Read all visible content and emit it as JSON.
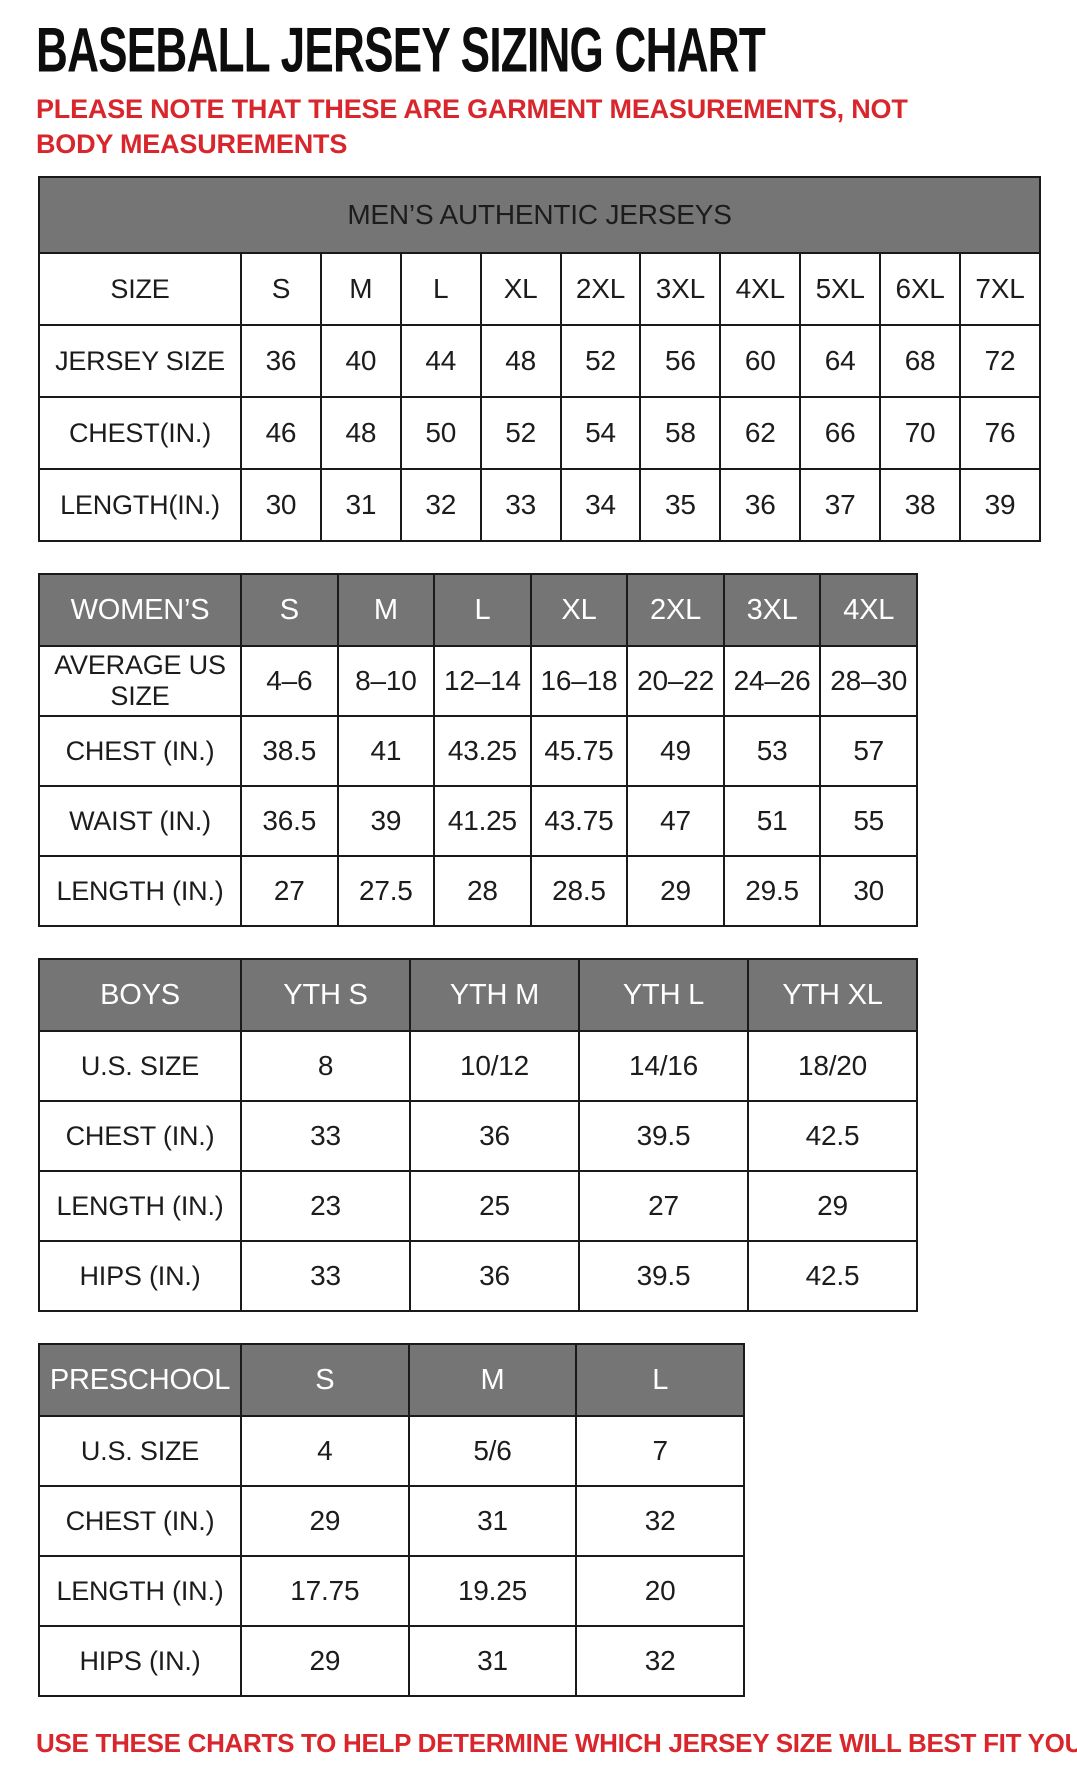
{
  "page": {
    "title": "BASEBALL JERSEY SIZING CHART",
    "note": "PLEASE NOTE THAT THESE ARE GARMENT MEASUREMENTS, NOT BODY MEASUREMENTS",
    "footer": "USE THESE CHARTS TO HELP DETERMINE WHICH JERSEY SIZE WILL BEST FIT YOU."
  },
  "colors": {
    "header_gray": "#757575",
    "accent_red": "#d8262c",
    "text_black": "#1c1c1c",
    "border_color": "#1a1a1a"
  },
  "tables": {
    "mens": {
      "title": "MEN’S AUTHENTIC JERSEYS",
      "rows": [
        {
          "label": "SIZE",
          "values": [
            "S",
            "M",
            "L",
            "XL",
            "2XL",
            "3XL",
            "4XL",
            "5XL",
            "6XL",
            "7XL"
          ]
        },
        {
          "label": "JERSEY SIZE",
          "values": [
            "36",
            "40",
            "44",
            "48",
            "52",
            "56",
            "60",
            "64",
            "68",
            "72"
          ]
        },
        {
          "label": "CHEST(IN.)",
          "values": [
            "46",
            "48",
            "50",
            "52",
            "54",
            "58",
            "62",
            "66",
            "70",
            "76"
          ]
        },
        {
          "label": "LENGTH(IN.)",
          "values": [
            "30",
            "31",
            "32",
            "33",
            "34",
            "35",
            "36",
            "37",
            "38",
            "39"
          ]
        }
      ]
    },
    "womens": {
      "header": {
        "label": "WOMEN’S",
        "sizes": [
          "S",
          "M",
          "L",
          "XL",
          "2XL",
          "3XL",
          "4XL"
        ]
      },
      "rows": [
        {
          "label": "AVERAGE US SIZE",
          "values": [
            "4–6",
            "8–10",
            "12–14",
            "16–18",
            "20–22",
            "24–26",
            "28–30"
          ]
        },
        {
          "label": "CHEST (IN.)",
          "values": [
            "38.5",
            "41",
            "43.25",
            "45.75",
            "49",
            "53",
            "57"
          ]
        },
        {
          "label": "WAIST (IN.)",
          "values": [
            "36.5",
            "39",
            "41.25",
            "43.75",
            "47",
            "51",
            "55"
          ]
        },
        {
          "label": "LENGTH (IN.)",
          "values": [
            "27",
            "27.5",
            "28",
            "28.5",
            "29",
            "29.5",
            "30"
          ]
        }
      ]
    },
    "boys": {
      "header": {
        "label": "BOYS",
        "sizes": [
          "YTH S",
          "YTH M",
          "YTH L",
          "YTH XL"
        ]
      },
      "rows": [
        {
          "label": "U.S. SIZE",
          "values": [
            "8",
            "10/12",
            "14/16",
            "18/20"
          ]
        },
        {
          "label": "CHEST (IN.)",
          "values": [
            "33",
            "36",
            "39.5",
            "42.5"
          ]
        },
        {
          "label": "LENGTH (IN.)",
          "values": [
            "23",
            "25",
            "27",
            "29"
          ]
        },
        {
          "label": "HIPS (IN.)",
          "values": [
            "33",
            "36",
            "39.5",
            "42.5"
          ]
        }
      ]
    },
    "preschool": {
      "header": {
        "label": "PRESCHOOL",
        "sizes": [
          "S",
          "M",
          "L"
        ]
      },
      "rows": [
        {
          "label": "U.S. SIZE",
          "values": [
            "4",
            "5/6",
            "7"
          ]
        },
        {
          "label": "CHEST (IN.)",
          "values": [
            "29",
            "31",
            "32"
          ]
        },
        {
          "label": "LENGTH (IN.)",
          "values": [
            "17.75",
            "19.25",
            "20"
          ]
        },
        {
          "label": "HIPS (IN.)",
          "values": [
            "29",
            "31",
            "32"
          ]
        }
      ]
    }
  }
}
